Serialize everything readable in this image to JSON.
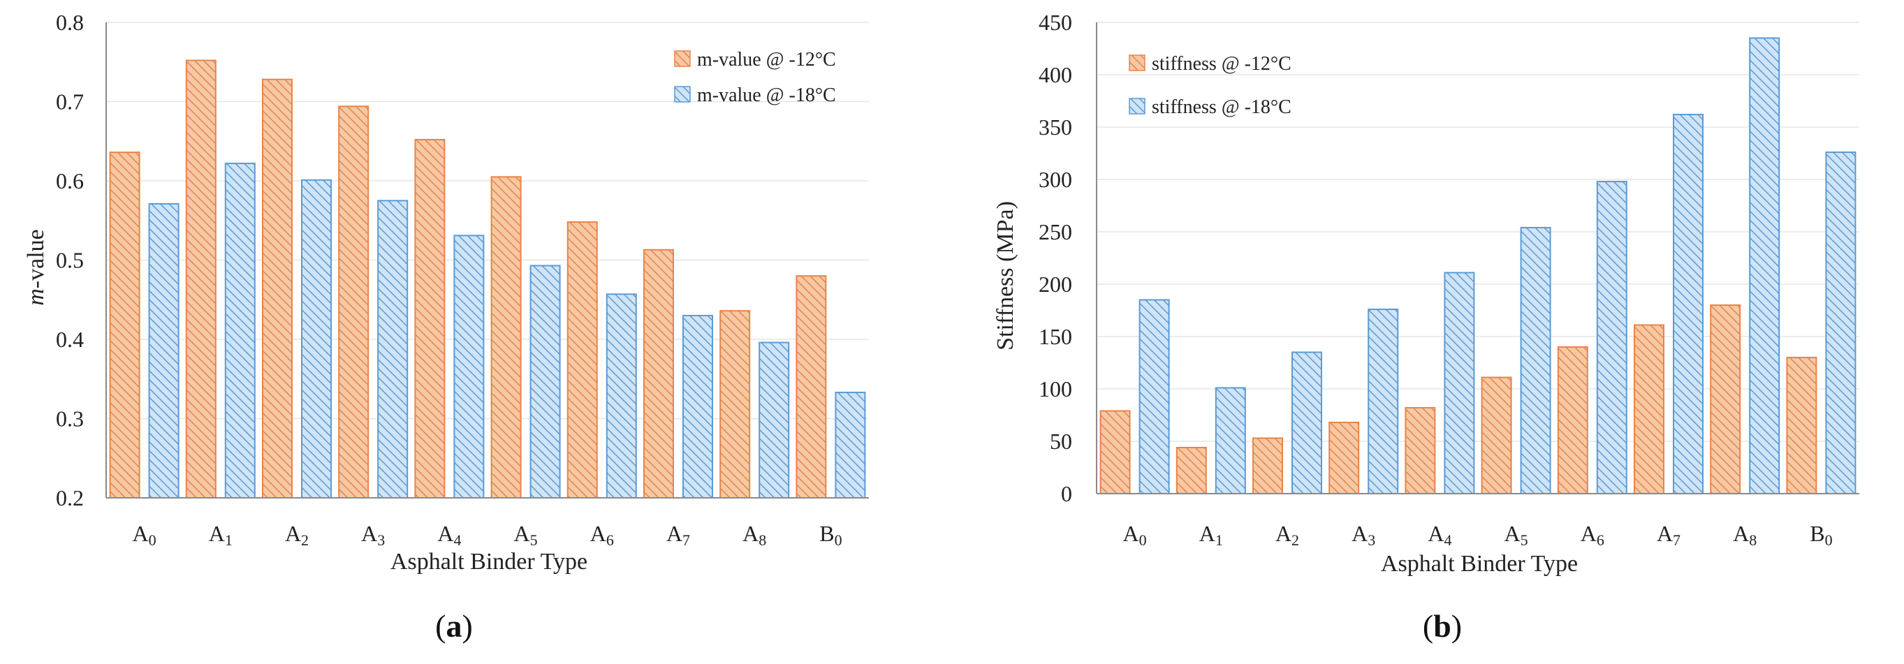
{
  "colors": {
    "orange_fill": "#f6c8a4",
    "orange_line": "#e8844a",
    "blue_fill": "#cfe4f6",
    "blue_line": "#5b9bd5",
    "grid": "#e6e6e6",
    "axis": "#8a8a8a"
  },
  "chart_data": [
    {
      "type": "bar",
      "panel": "a",
      "categories": [
        {
          "base": "A",
          "sub": "0"
        },
        {
          "base": "A",
          "sub": "1"
        },
        {
          "base": "A",
          "sub": "2"
        },
        {
          "base": "A",
          "sub": "3"
        },
        {
          "base": "A",
          "sub": "4"
        },
        {
          "base": "A",
          "sub": "5"
        },
        {
          "base": "A",
          "sub": "6"
        },
        {
          "base": "A",
          "sub": "7"
        },
        {
          "base": "A",
          "sub": "8"
        },
        {
          "base": "B",
          "sub": "0"
        }
      ],
      "series": [
        {
          "name": "m-value @ -12°C",
          "color": "orange",
          "values": [
            0.636,
            0.752,
            0.728,
            0.694,
            0.652,
            0.605,
            0.548,
            0.513,
            0.436,
            0.48
          ]
        },
        {
          "name": "m-value @ -18°C",
          "color": "blue",
          "values": [
            0.571,
            0.622,
            0.601,
            0.575,
            0.531,
            0.493,
            0.457,
            0.43,
            0.396,
            0.333
          ]
        }
      ],
      "ylim": [
        0.2,
        0.8
      ],
      "yticks": [
        "0.2",
        "0.3",
        "0.4",
        "0.5",
        "0.6",
        "0.7",
        "0.8"
      ],
      "ylabel_italic": "m",
      "ylabel_rest": "-value",
      "xlabel": "Asphalt Binder Type",
      "legend_position": "top-right",
      "grid": true,
      "caption_open": "(",
      "caption_letter": "a",
      "caption_close": ")"
    },
    {
      "type": "bar",
      "panel": "b",
      "categories": [
        {
          "base": "A",
          "sub": "0"
        },
        {
          "base": "A",
          "sub": "1"
        },
        {
          "base": "A",
          "sub": "2"
        },
        {
          "base": "A",
          "sub": "3"
        },
        {
          "base": "A",
          "sub": "4"
        },
        {
          "base": "A",
          "sub": "5"
        },
        {
          "base": "A",
          "sub": "6"
        },
        {
          "base": "A",
          "sub": "7"
        },
        {
          "base": "A",
          "sub": "8"
        },
        {
          "base": "B",
          "sub": "0"
        }
      ],
      "series": [
        {
          "name": "stiffness @ -12°C",
          "color": "orange",
          "values": [
            79,
            44,
            53,
            68,
            82,
            111,
            140,
            161,
            180,
            130
          ]
        },
        {
          "name": "stiffness @ -18°C",
          "color": "blue",
          "values": [
            185,
            101,
            135,
            176,
            211,
            254,
            298,
            362,
            435,
            326
          ]
        }
      ],
      "ylim": [
        0,
        450
      ],
      "yticks": [
        "0",
        "50",
        "100",
        "150",
        "200",
        "250",
        "300",
        "350",
        "400",
        "450"
      ],
      "ylabel": "Stiffness (MPa)",
      "xlabel": "Asphalt Binder Type",
      "legend_position": "top-left",
      "grid": true,
      "caption_open": "(",
      "caption_letter": "b",
      "caption_close": ")"
    }
  ]
}
